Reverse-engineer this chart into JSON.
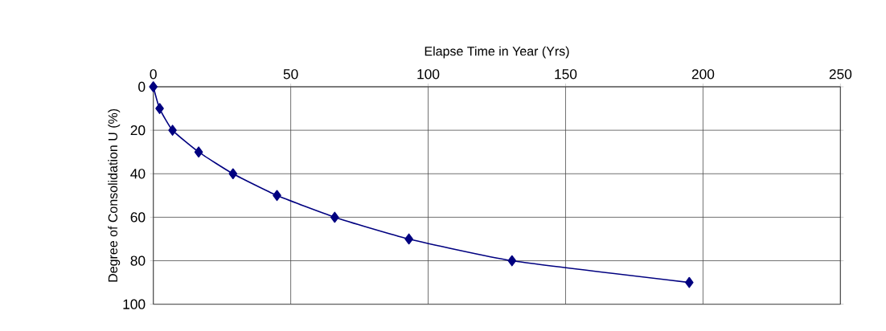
{
  "chart_data": {
    "type": "line",
    "xlabel": "Elapse Time in Year (Yrs)",
    "ylabel": "Degree of Consolidation U (%)",
    "x": [
      0,
      2.3,
      7,
      16.5,
      29,
      45,
      66,
      93,
      130.5,
      195
    ],
    "series": [
      {
        "color": "#000080",
        "values": [
          0,
          10,
          20,
          30,
          40,
          50,
          60,
          70,
          80,
          90
        ]
      }
    ],
    "xlim": [
      0,
      250
    ],
    "xticks": [
      0,
      50,
      100,
      150,
      200,
      250
    ],
    "ylim": [
      100,
      0
    ],
    "yticks": [
      0,
      20,
      40,
      60,
      80,
      100
    ],
    "grid": true,
    "marker": "diamond",
    "line_style": "solid"
  }
}
